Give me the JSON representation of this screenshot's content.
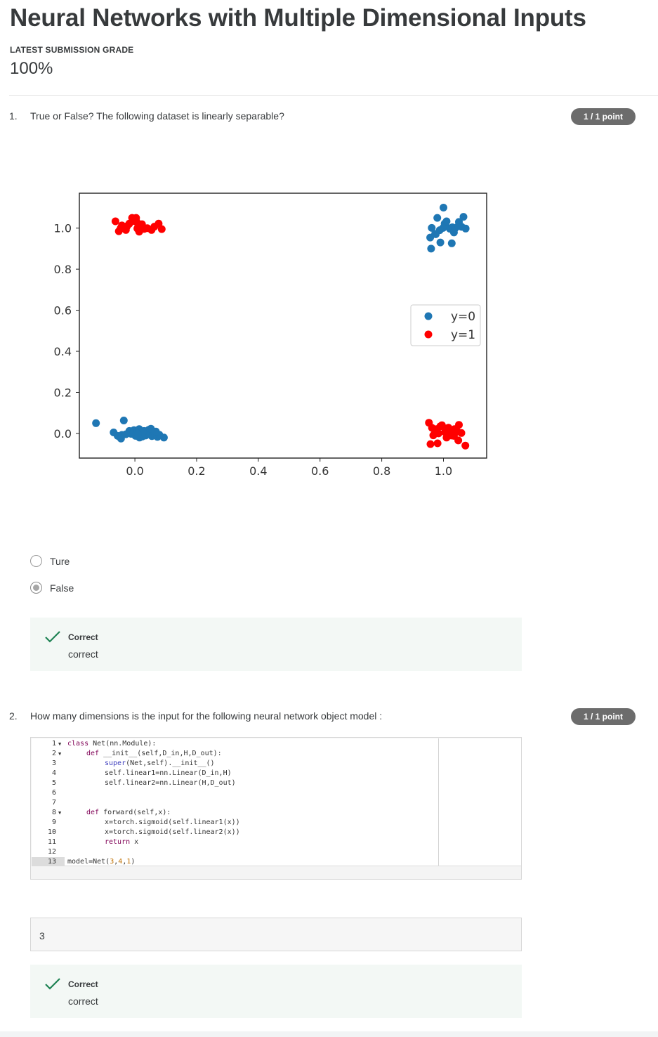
{
  "page": {
    "title": "Neural Networks with Multiple Dimensional Inputs",
    "grade_label": "LATEST SUBMISSION GRADE",
    "grade_value": "100%"
  },
  "questions": [
    {
      "number": "1.",
      "text": "True or False? The following dataset is linearly separable?",
      "points": "1 / 1 point",
      "options": [
        {
          "label": "Ture",
          "selected": false
        },
        {
          "label": "False",
          "selected": true
        }
      ],
      "feedback": {
        "title": "Correct",
        "text": "correct"
      }
    },
    {
      "number": "2.",
      "text": "How many dimensions is the input for the following neural network object model :",
      "points": "1 / 1 point",
      "answer": "3",
      "feedback": {
        "title": "Correct",
        "text": "correct"
      }
    }
  ],
  "code": {
    "line_numbers": [
      "1",
      "2",
      "3",
      "4",
      "5",
      "6",
      "7",
      "8",
      "9",
      "10",
      "11",
      "12",
      "13"
    ],
    "tokens": {
      "class": "class",
      "def": "def",
      "super": "super",
      "return": "return",
      "l1_rest": " Net(nn.Module):",
      "l2_rest": " __init__(self,D_in,H,D_out):",
      "l3_rest": "(Net,self).__init__()",
      "l4": "self.linear1=nn.Linear(D_in,H)",
      "l5": "self.linear2=nn.Linear(H,D_out)",
      "l8_rest": " forward(self,x):",
      "l9": "x=torch.sigmoid(self.linear1(x))",
      "l10": "x=torch.sigmoid(self.linear2(x))",
      "l11_rest": " x",
      "l13_pre": "model=Net(",
      "n3": "3",
      "comma1": ",",
      "n4": "4",
      "comma2": ",",
      "n1": "1",
      "l13_post": ")"
    }
  },
  "chart_data": {
    "type": "scatter",
    "xlim": [
      -0.18,
      1.14
    ],
    "ylim": [
      -0.12,
      1.17
    ],
    "xticks": [
      0.0,
      0.2,
      0.4,
      0.6,
      0.8,
      1.0
    ],
    "yticks": [
      0.0,
      0.2,
      0.4,
      0.6,
      0.8,
      1.0
    ],
    "xtick_labels": [
      "0.0",
      "0.2",
      "0.4",
      "0.6",
      "0.8",
      "1.0"
    ],
    "ytick_labels": [
      "0.0",
      "0.2",
      "0.4",
      "0.6",
      "0.8",
      "1.0"
    ],
    "grid": false,
    "legend_position": "center-right",
    "series": [
      {
        "name": "y=0",
        "color": "#1f77b4",
        "points": [
          [
            -0.126,
            0.05
          ],
          [
            -0.036,
            0.063
          ],
          [
            -0.069,
            0.005
          ],
          [
            -0.056,
            -0.012
          ],
          [
            -0.045,
            -0.025
          ],
          [
            -0.042,
            -0.007
          ],
          [
            -0.018,
            0.012
          ],
          [
            -0.012,
            -0.002
          ],
          [
            -0.003,
            0.016
          ],
          [
            0.008,
            0.01
          ],
          [
            0.014,
            0.021
          ],
          [
            0.019,
            0.002
          ],
          [
            0.024,
            -0.015
          ],
          [
            0.03,
            0.012
          ],
          [
            0.041,
            -0.001
          ],
          [
            0.045,
            0.018
          ],
          [
            0.055,
            -0.013
          ],
          [
            0.063,
            0.005
          ],
          [
            0.073,
            -0.017
          ],
          [
            0.094,
            -0.02
          ],
          [
            0.052,
            0.023
          ],
          [
            0.002,
            -0.012
          ],
          [
            0.015,
            -0.02
          ],
          [
            0.035,
            -0.01
          ],
          [
            0.079,
            -0.006
          ],
          [
            0.068,
            0.009
          ],
          [
            0.026,
            0.006
          ],
          [
            -0.029,
            -0.004
          ],
          [
            0.01,
            -0.005
          ]
        ]
      },
      {
        "name": "y=1",
        "color": "#ff0000",
        "points": [
          [
            -0.063,
            1.033
          ],
          [
            -0.046,
            1.0
          ],
          [
            -0.052,
            0.985
          ],
          [
            -0.042,
            1.013
          ],
          [
            -0.029,
            0.991
          ],
          [
            -0.025,
            1.01
          ],
          [
            -0.018,
            1.022
          ],
          [
            -0.009,
            1.05
          ],
          [
            0.004,
            1.05
          ],
          [
            0.008,
            0.998
          ],
          [
            0.011,
            1.016
          ],
          [
            0.014,
            0.983
          ],
          [
            0.018,
            1.003
          ],
          [
            0.023,
            1.019
          ],
          [
            0.03,
            0.996
          ],
          [
            0.054,
            0.991
          ],
          [
            0.063,
            1.007
          ],
          [
            0.077,
            1.022
          ],
          [
            0.087,
            0.995
          ],
          [
            -0.005,
            1.035
          ],
          [
            0.04,
            1.0
          ],
          [
            0.006,
            1.03
          ],
          [
            -0.035,
            1.002
          ],
          [
            0.953,
            0.052
          ],
          [
            0.963,
            0.027
          ],
          [
            0.967,
            -0.009
          ],
          [
            0.978,
            0.021
          ],
          [
            0.984,
            0.0
          ],
          [
            0.99,
            0.035
          ],
          [
            1.005,
            0.007
          ],
          [
            1.016,
            0.028
          ],
          [
            1.025,
            -0.01
          ],
          [
            1.036,
            0.021
          ],
          [
            1.044,
            0.01
          ],
          [
            1.05,
            0.042
          ],
          [
            1.058,
            0.002
          ],
          [
            1.071,
            -0.059
          ],
          [
            0.958,
            -0.052
          ],
          [
            0.981,
            -0.048
          ],
          [
            1.034,
            -0.012
          ],
          [
            1.048,
            -0.034
          ],
          [
            0.995,
            0.04
          ],
          [
            1.01,
            -0.02
          ],
          [
            0.973,
            0.012
          ],
          [
            1.02,
            0.015
          ]
        ]
      },
      {
        "name": "y=0",
        "color": "#1f77b4",
        "points": [
          [
            1.0,
            1.1
          ],
          [
            0.962,
            1.001
          ],
          [
            0.975,
            0.97
          ],
          [
            0.98,
            1.05
          ],
          [
            0.988,
            0.99
          ],
          [
            0.999,
            1.001
          ],
          [
            1.004,
            1.022
          ],
          [
            1.007,
            1.014
          ],
          [
            1.01,
            1.033
          ],
          [
            1.021,
            0.997
          ],
          [
            1.029,
            1.004
          ],
          [
            1.034,
            0.979
          ],
          [
            1.038,
            1.0
          ],
          [
            1.048,
            1.01
          ],
          [
            1.05,
            1.03
          ],
          [
            1.059,
            1.006
          ],
          [
            1.065,
            1.055
          ],
          [
            1.072,
            0.998
          ],
          [
            0.957,
            0.954
          ],
          [
            0.973,
            0.972
          ],
          [
            0.99,
            0.93
          ],
          [
            1.027,
            0.926
          ],
          [
            0.96,
            0.9
          ]
        ]
      }
    ]
  },
  "legend": [
    {
      "label": "y=0",
      "color": "#1f77b4"
    },
    {
      "label": "y=1",
      "color": "#ff0000"
    }
  ]
}
